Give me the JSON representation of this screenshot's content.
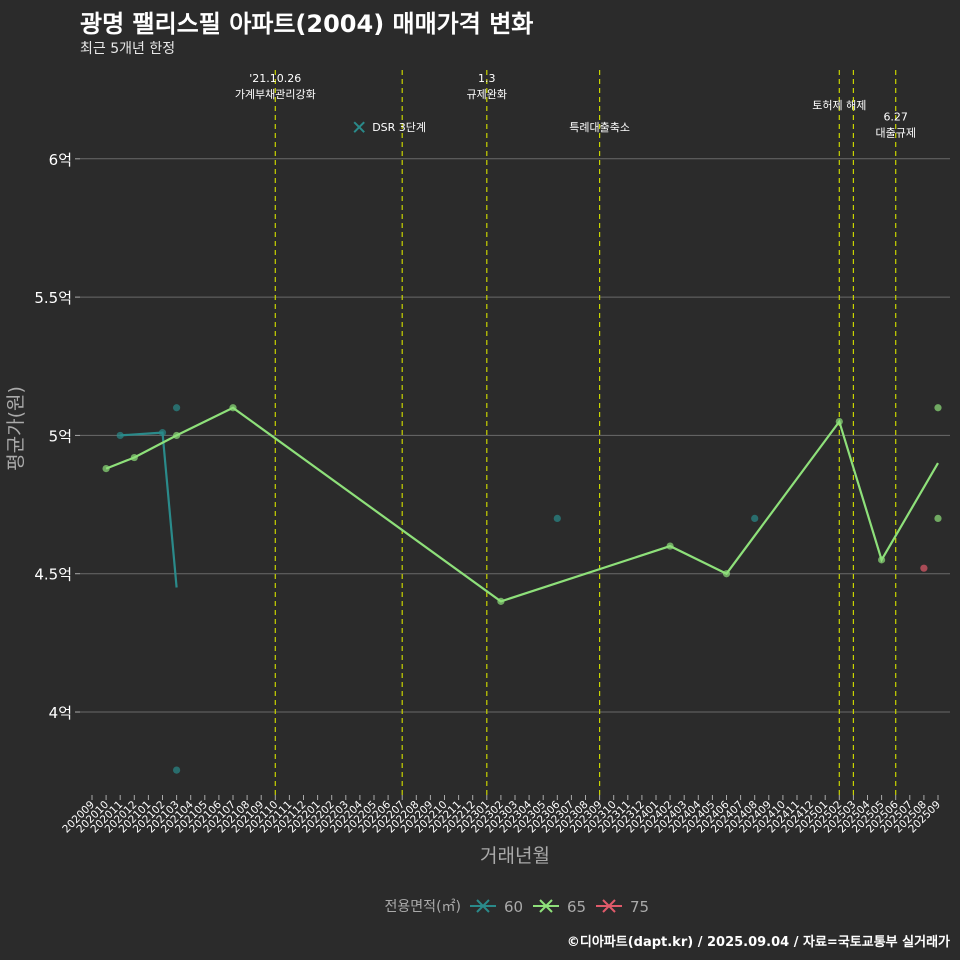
{
  "title": "광명 팰리스필 아파트(2004) 매매가격 변화",
  "subtitle": "최근 5개년 한정",
  "caption": "©디아파트(dapt.kr) / 2025.09.04 / 자료=국토교통부 실거래가",
  "colors": {
    "background": "#2b2b2b",
    "grid": "#6a6a6a",
    "event_line": "#c8d400",
    "series_60": "#2a8a8a",
    "series_65": "#8ee07a",
    "series_75": "#e05a6a",
    "axis_text": "#ffffff",
    "axis_title": "#aaaaaa"
  },
  "chart_data": {
    "type": "line",
    "xlabel": "거래년월",
    "ylabel": "평균가(원)",
    "x_ticks": [
      "202009",
      "202010",
      "202011",
      "202012",
      "202101",
      "202102",
      "202103",
      "202104",
      "202105",
      "202106",
      "202107",
      "202108",
      "202109",
      "202110",
      "202111",
      "202112",
      "202201",
      "202202",
      "202203",
      "202204",
      "202205",
      "202206",
      "202207",
      "202208",
      "202209",
      "202210",
      "202211",
      "202212",
      "202301",
      "202302",
      "202303",
      "202304",
      "202305",
      "202306",
      "202307",
      "202308",
      "202309",
      "202310",
      "202311",
      "202312",
      "202401",
      "202402",
      "202403",
      "202404",
      "202405",
      "202406",
      "202407",
      "202408",
      "202409",
      "202410",
      "202411",
      "202412",
      "202501",
      "202502",
      "202503",
      "202504",
      "202505",
      "202506",
      "202507",
      "202508",
      "202509"
    ],
    "y_ticks": [
      {
        "value": 4.0,
        "label": "4억"
      },
      {
        "value": 4.5,
        "label": "4.5억"
      },
      {
        "value": 5.0,
        "label": "5억"
      },
      {
        "value": 5.5,
        "label": "5.5억"
      },
      {
        "value": 6.0,
        "label": "6억"
      }
    ],
    "ylim": [
      3.7,
      6.35
    ],
    "legend_title": "전용면적(㎡)",
    "legend_position": "bottom",
    "series": [
      {
        "name": "60",
        "color_key": "series_60",
        "line": [
          [
            "202011",
            5.0
          ],
          [
            "202102",
            5.01
          ],
          [
            "202103",
            4.45
          ]
        ],
        "points": [
          [
            "202011",
            5.0
          ],
          [
            "202102",
            5.01
          ],
          [
            "202103",
            5.1
          ],
          [
            "202103",
            3.79
          ],
          [
            "202306",
            4.7
          ],
          [
            "202408",
            4.7
          ]
        ]
      },
      {
        "name": "65",
        "color_key": "series_65",
        "line": [
          [
            "202010",
            4.88
          ],
          [
            "202012",
            4.92
          ],
          [
            "202103",
            5.0
          ],
          [
            "202107",
            5.1
          ],
          [
            "202302",
            4.4
          ],
          [
            "202402",
            4.6
          ],
          [
            "202406",
            4.5
          ],
          [
            "202502",
            5.05
          ],
          [
            "202505",
            4.55
          ],
          [
            "202509",
            4.9
          ]
        ],
        "points": [
          [
            "202010",
            4.88
          ],
          [
            "202012",
            4.92
          ],
          [
            "202103",
            5.0
          ],
          [
            "202107",
            5.1
          ],
          [
            "202302",
            4.4
          ],
          [
            "202402",
            4.6
          ],
          [
            "202406",
            4.5
          ],
          [
            "202502",
            5.05
          ],
          [
            "202505",
            4.55
          ],
          [
            "202509",
            5.1
          ],
          [
            "202509",
            4.7
          ]
        ]
      },
      {
        "name": "75",
        "color_key": "series_75",
        "line": [],
        "points": [
          [
            "202508",
            4.52
          ]
        ]
      }
    ],
    "events": [
      {
        "date": "202110",
        "x_offset": 0.0,
        "labels": [
          "'21.10.26",
          "가계부채관리강화"
        ],
        "label_anchor_value": 6.22
      },
      {
        "date": "202207",
        "x_offset": 0.0,
        "labels": [
          "DSR 3단계"
        ],
        "label_anchor_value": 6.1,
        "marker": true
      },
      {
        "date": "202301",
        "x_offset": 0.0,
        "labels": [
          "1.3",
          "규제완화"
        ],
        "label_anchor_value": 6.22
      },
      {
        "date": "202309",
        "x_offset": 0.0,
        "labels": [
          "특례대출축소"
        ],
        "label_anchor_value": 6.1
      },
      {
        "date": "202502",
        "x_offset": 0.0,
        "labels": [
          "토허제 해제"
        ],
        "label_anchor_value": 6.18
      },
      {
        "date": "202503",
        "x_offset": 0.0,
        "labels": [],
        "label_anchor_value": 6.18
      },
      {
        "date": "202506",
        "x_offset": 0.0,
        "labels": [
          "6.27",
          "대출규제"
        ],
        "label_anchor_value": 6.08
      }
    ]
  }
}
